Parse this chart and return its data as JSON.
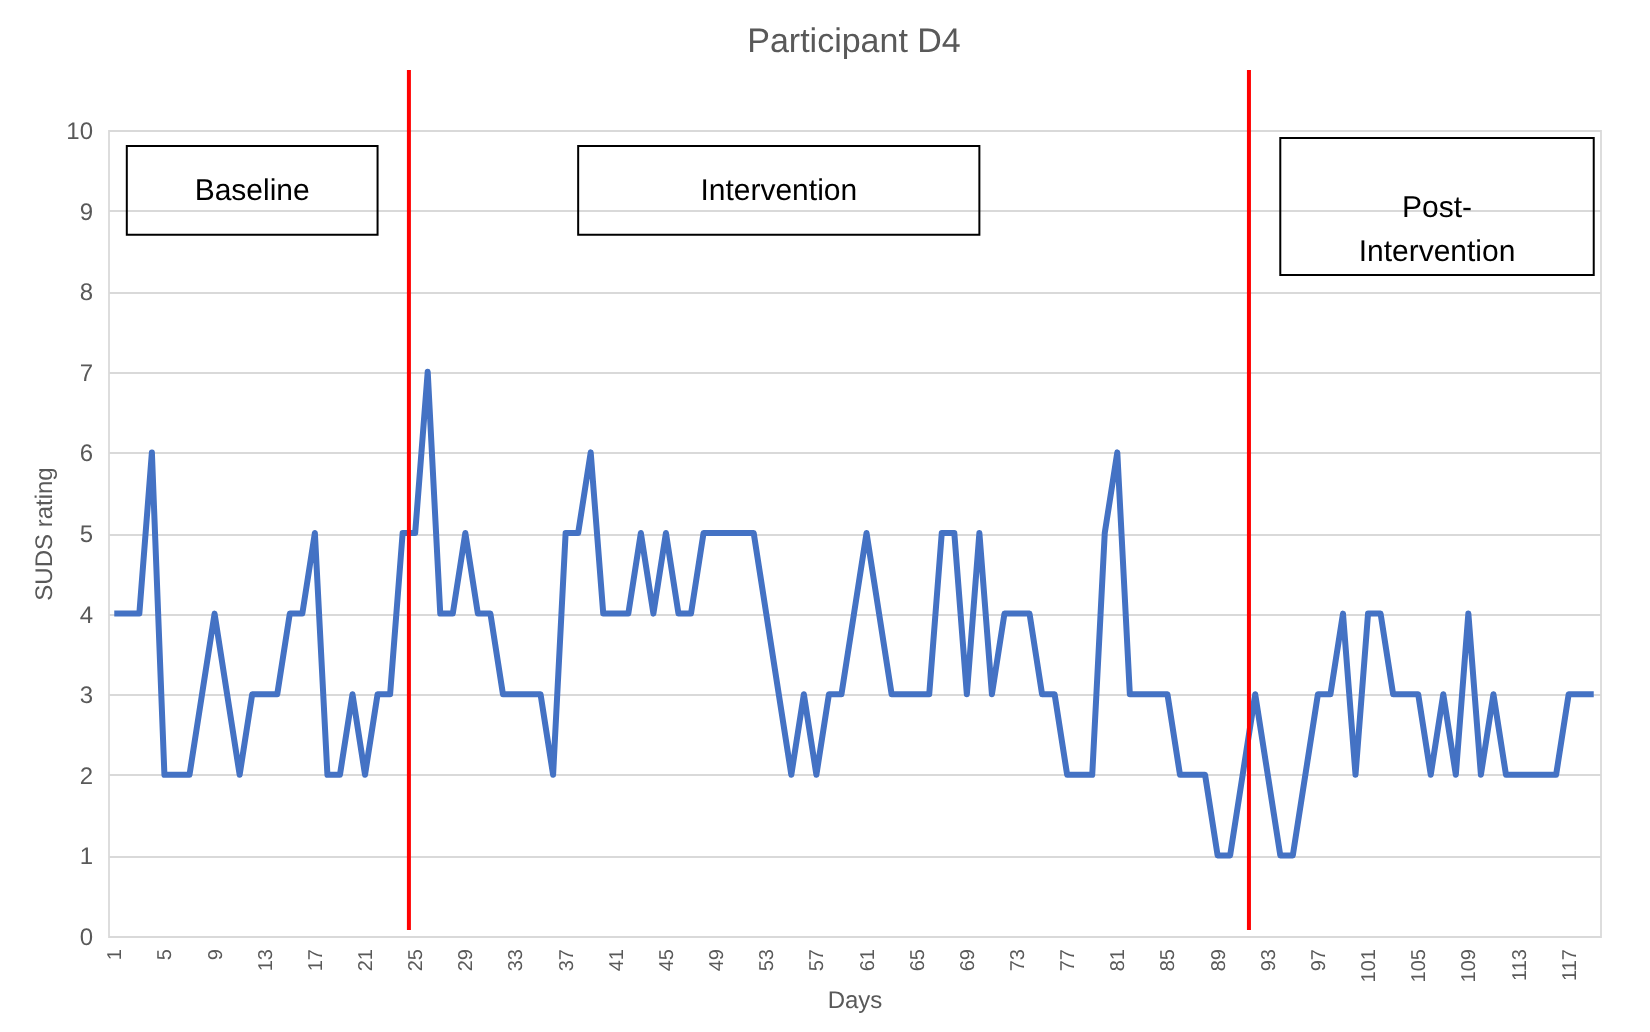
{
  "chart_data": {
    "type": "line",
    "title": "Participant D4",
    "xlabel": "Days",
    "ylabel": "SUDS rating",
    "x": [
      1,
      2,
      3,
      4,
      5,
      6,
      7,
      8,
      9,
      10,
      11,
      12,
      13,
      14,
      15,
      16,
      17,
      18,
      19,
      20,
      21,
      22,
      23,
      24,
      25,
      26,
      27,
      28,
      29,
      30,
      31,
      32,
      33,
      34,
      35,
      36,
      37,
      38,
      39,
      40,
      41,
      42,
      43,
      44,
      45,
      46,
      47,
      48,
      49,
      50,
      51,
      52,
      53,
      54,
      55,
      56,
      57,
      58,
      59,
      60,
      61,
      62,
      63,
      64,
      65,
      66,
      67,
      68,
      69,
      70,
      71,
      72,
      73,
      74,
      75,
      76,
      77,
      78,
      79,
      80,
      81,
      82,
      83,
      84,
      85,
      86,
      87,
      88,
      89,
      90,
      91,
      92,
      93,
      94,
      95,
      96,
      97,
      98,
      99,
      100,
      101,
      102,
      103,
      104,
      105,
      106,
      107,
      108,
      109,
      110,
      111,
      112,
      113,
      114,
      115,
      116,
      117,
      118,
      119
    ],
    "series": [
      {
        "color": "#4472c4",
        "values": [
          4,
          4,
          4,
          6,
          2,
          2,
          2,
          3,
          4,
          3,
          2,
          3,
          3,
          3,
          4,
          4,
          5,
          2,
          2,
          3,
          2,
          3,
          3,
          5,
          5,
          7,
          4,
          4,
          5,
          4,
          4,
          3,
          3,
          3,
          3,
          2,
          5,
          5,
          6,
          4,
          4,
          4,
          5,
          4,
          5,
          4,
          4,
          5,
          5,
          5,
          5,
          5,
          4,
          3,
          2,
          3,
          2,
          3,
          3,
          4,
          5,
          4,
          3,
          3,
          3,
          3,
          5,
          5,
          3,
          5,
          3,
          4,
          4,
          4,
          3,
          3,
          2,
          2,
          2,
          5,
          6,
          3,
          3,
          3,
          3,
          2,
          2,
          2,
          1,
          1,
          2,
          3,
          2,
          1,
          1,
          2,
          3,
          3,
          4,
          2,
          4,
          4,
          3,
          3,
          3,
          2,
          3,
          2,
          4,
          2,
          3,
          2,
          2,
          2,
          2,
          2,
          3,
          3,
          3
        ]
      }
    ],
    "xlim": [
      0.5,
      119.5
    ],
    "xticks": [
      1,
      5,
      9,
      13,
      17,
      21,
      25,
      29,
      33,
      37,
      41,
      45,
      49,
      53,
      57,
      61,
      65,
      69,
      73,
      77,
      81,
      85,
      89,
      93,
      97,
      101,
      105,
      109,
      113,
      117
    ],
    "ylim": [
      0,
      10
    ],
    "yticks": [
      0,
      1,
      2,
      3,
      4,
      5,
      6,
      7,
      8,
      9,
      10
    ],
    "grid": "y",
    "marker": "none",
    "line_style": "solid",
    "ref_lines": [
      {
        "axis": "x",
        "value": 24.5,
        "color": "#ff0000"
      },
      {
        "axis": "x",
        "value": 91.5,
        "color": "#ff0000"
      }
    ],
    "annotations": [
      "Baseline",
      "Intervention",
      "Post-\nIntervention"
    ]
  }
}
